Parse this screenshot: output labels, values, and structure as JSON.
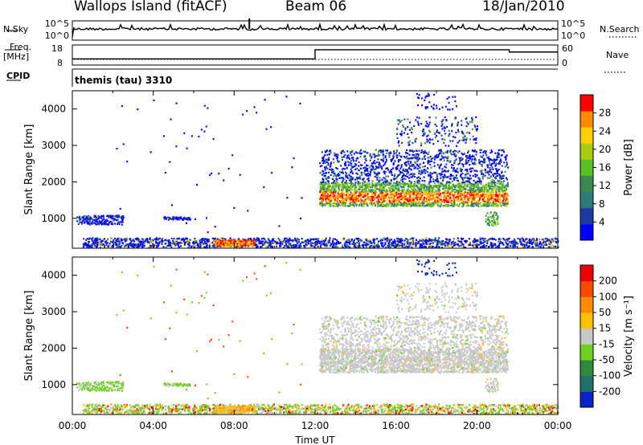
{
  "header": {
    "station": "Wallops Island (fitACF)",
    "beam": "Beam 06",
    "date": "18/Jan/2010"
  },
  "left_labels": {
    "nsky": "N.Sky",
    "freq": "Freq.",
    "freq_unit": "[MHz]",
    "cpid": "CPID"
  },
  "right_labels": {
    "nsearch": "N.Search",
    "nave": "Nave"
  },
  "cpid_text": "themis (tau) 3310",
  "chart_data": [
    {
      "type": "line",
      "name": "noise",
      "yticks_left": [
        "10^5",
        "10^0"
      ],
      "yticks_right": [
        "10^5",
        "10^0"
      ]
    },
    {
      "type": "line",
      "name": "frequency",
      "yticks_left": [
        "18",
        "8"
      ],
      "yticks_right": [
        "60",
        "0"
      ],
      "frequency_steps": [
        {
          "x": [
            0,
            12
          ],
          "y": 11
        },
        {
          "x": [
            12,
            21.6
          ],
          "y": 17
        },
        {
          "x": [
            21.6,
            24
          ],
          "y": 15.5
        }
      ]
    },
    {
      "type": "heatmap",
      "name": "power",
      "ylabel": "Slant Range [km]",
      "yticks": [
        "4000",
        "3000",
        "2000",
        "1000"
      ],
      "colorbar": {
        "label": "Power [dB]",
        "ticks": [
          "28",
          "24",
          "20",
          "16",
          "12",
          "8",
          "4"
        ],
        "colors": [
          "#0000ff",
          "#1e3aa0",
          "#2e7a7a",
          "#3a8a50",
          "#55c025",
          "#aacc10",
          "#ffd000",
          "#ff8c00",
          "#ff0000"
        ]
      },
      "ylim": [
        180,
        4500
      ]
    },
    {
      "type": "heatmap",
      "name": "velocity",
      "ylabel": "Slant Range [km]",
      "yticks": [
        "4000",
        "3000",
        "2000",
        "1000"
      ],
      "colorbar": {
        "label": "Velocity [m s⁻¹]",
        "ticks": [
          "200",
          "100",
          "50",
          "15",
          "-15",
          "-50",
          "-100",
          "-200"
        ],
        "colors": [
          "#0a22c8",
          "#1e6f6e",
          "#2f8a3a",
          "#6fd020",
          "#c8c8c8",
          "#ffc000",
          "#ff8c00",
          "#ff4a00",
          "#ee0000"
        ]
      },
      "ylim": [
        180,
        4500
      ],
      "xlabel": "Time UT",
      "xticks": [
        "00:00",
        "04:00",
        "08:00",
        "12:00",
        "16:00",
        "20:00",
        "00:00"
      ]
    }
  ]
}
